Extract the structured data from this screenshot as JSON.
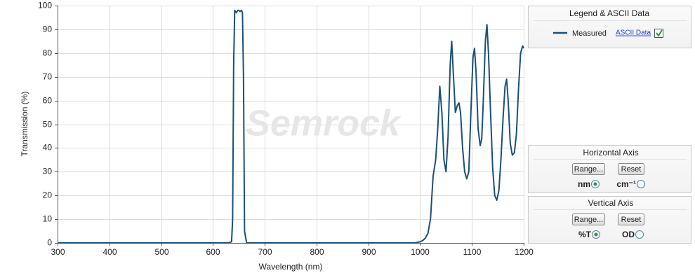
{
  "chart_data": {
    "type": "line",
    "xlabel": "Wavelength (nm)",
    "ylabel": "Transmission (%)",
    "watermark": "Semrock",
    "x": [
      300,
      630,
      636,
      638,
      640,
      642,
      645,
      648,
      650,
      652,
      655,
      657,
      659,
      661,
      665,
      990,
      1000,
      1005,
      1010,
      1015,
      1020,
      1025,
      1030,
      1034,
      1038,
      1042,
      1046,
      1050,
      1054,
      1058,
      1061,
      1064,
      1068,
      1072,
      1075,
      1078,
      1082,
      1086,
      1090,
      1094,
      1098,
      1102,
      1105,
      1108,
      1112,
      1116,
      1119,
      1122,
      1126,
      1129,
      1132,
      1136,
      1140,
      1144,
      1148,
      1152,
      1156,
      1160,
      1164,
      1167,
      1170,
      1174,
      1178,
      1182,
      1186,
      1190,
      1194,
      1198,
      1200
    ],
    "series": [
      {
        "name": "Measured",
        "color": "#1b5078",
        "values": [
          0,
          0,
          0.5,
          10,
          75,
          98,
          97,
          98,
          98,
          97.5,
          98,
          97,
          70,
          5,
          0,
          0,
          0.5,
          1,
          2,
          4,
          10,
          28,
          35,
          48,
          66,
          55,
          35,
          30,
          45,
          75,
          85,
          72,
          55,
          58,
          59,
          55,
          40,
          30,
          27,
          30,
          55,
          78,
          82,
          72,
          48,
          41,
          44,
          60,
          85,
          92,
          80,
          55,
          32,
          20,
          18,
          22,
          35,
          52,
          66,
          69,
          60,
          42,
          37,
          38,
          46,
          65,
          80,
          83,
          82
        ]
      }
    ],
    "xlim": [
      300,
      1200
    ],
    "xticks": [
      300,
      400,
      500,
      600,
      700,
      800,
      900,
      1000,
      1100,
      1200
    ],
    "ylim": [
      0,
      100
    ],
    "yticks": [
      0,
      10,
      20,
      30,
      40,
      50,
      60,
      70,
      80,
      90,
      100
    ],
    "grid": true
  },
  "legend_panel": {
    "title": "Legend & ASCII Data",
    "link": "ASCII Data",
    "checked": true
  },
  "horizontal_axis_panel": {
    "title": "Horizontal Axis",
    "buttons": [
      "Range...",
      "Reset"
    ],
    "options": [
      {
        "label": "nm",
        "selected": true
      },
      {
        "label": "cm⁻¹",
        "selected": false
      }
    ]
  },
  "vertical_axis_panel": {
    "title": "Vertical  Axis",
    "buttons": [
      "Range...",
      "Reset"
    ],
    "options": [
      {
        "label": "%T",
        "selected": true
      },
      {
        "label": "OD",
        "selected": false
      }
    ]
  }
}
